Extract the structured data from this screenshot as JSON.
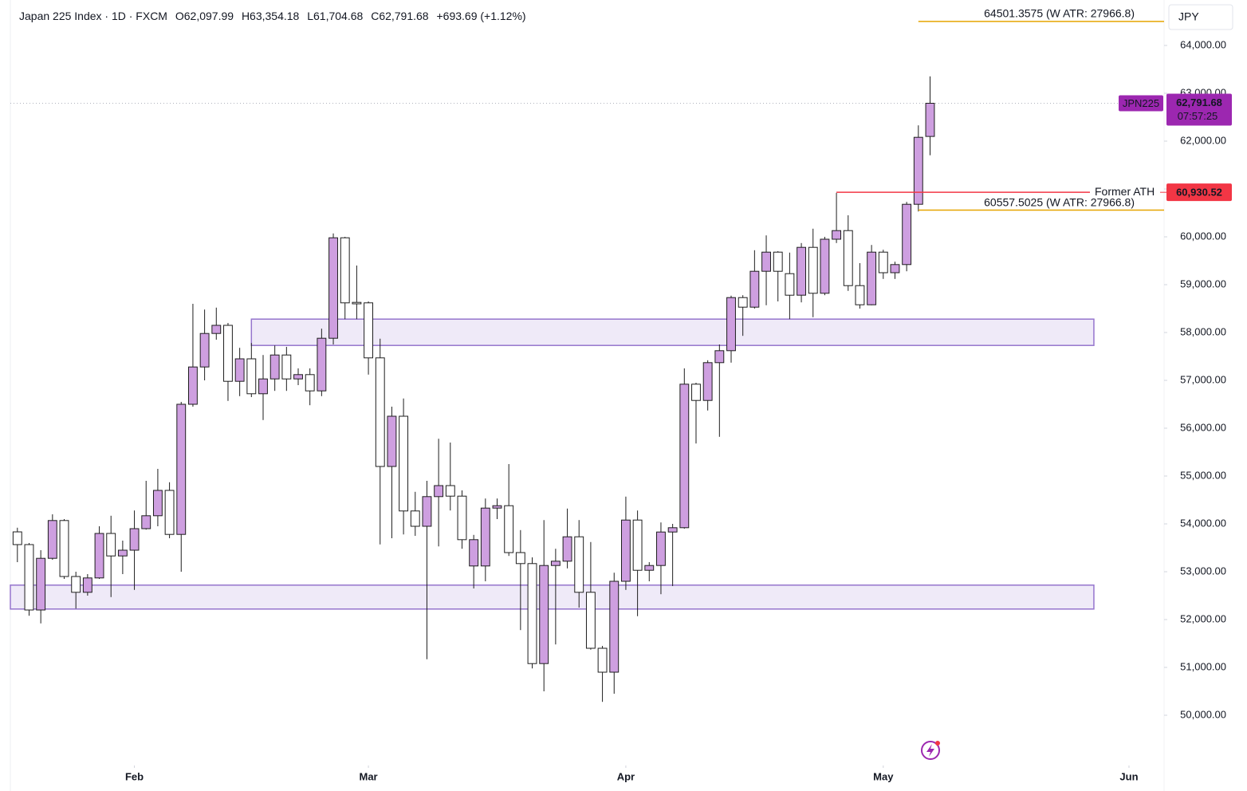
{
  "chart_data": {
    "type": "candlestick",
    "title": "Japan 225 Index · 1D · FXCM",
    "ohlc_text": [
      "O62,097.99",
      "H63,354.18",
      "L61,704.68",
      "C62,791.68",
      "+693.69 (+1.12%)"
    ],
    "currency": "JPY",
    "x": [
      0,
      1,
      2,
      3,
      4,
      5,
      6,
      7,
      8,
      9,
      10,
      11,
      12,
      13,
      14,
      15,
      16,
      17,
      18,
      19,
      20,
      21,
      22,
      23,
      24,
      25,
      26,
      27,
      28,
      29,
      30,
      31,
      32,
      33,
      34,
      35,
      36,
      37,
      38,
      39,
      40,
      41,
      42,
      43,
      44,
      45,
      46,
      47,
      48,
      49,
      50,
      51,
      52,
      53,
      54,
      55,
      56,
      57,
      58,
      59,
      60,
      61,
      62,
      63,
      64,
      65,
      66,
      67,
      68,
      69,
      70,
      71,
      72,
      73,
      74,
      75,
      76,
      77,
      78
    ],
    "open": [
      53833,
      53567,
      52200,
      53280,
      54070,
      52900,
      52570,
      52870,
      53800,
      53330,
      53450,
      53900,
      54170,
      54700,
      53780,
      56500,
      57280,
      57980,
      58150,
      56980,
      57450,
      56720,
      57030,
      57530,
      57030,
      57120,
      56780,
      57880,
      59980,
      58630,
      58620,
      57470,
      55200,
      56250,
      54270,
      53950,
      54570,
      54800,
      54580,
      53120,
      53120,
      54330,
      54380,
      53400,
      53170,
      51080,
      53130,
      53220,
      53730,
      52570,
      51400,
      50900,
      52800,
      54080,
      53030,
      53130,
      53830,
      53920,
      56920,
      56580,
      57370,
      57620,
      58730,
      58530,
      59280,
      59680,
      59230,
      58780,
      59780,
      58820,
      59950,
      60130,
      58980,
      58580,
      59680,
      59250,
      59420,
      60680,
      62097.99
    ],
    "high": [
      53920,
      53600,
      53450,
      54200,
      54100,
      53000,
      52950,
      53950,
      54170,
      53650,
      54280,
      54900,
      55150,
      54870,
      56550,
      58600,
      58480,
      58520,
      58200,
      57680,
      57780,
      57530,
      57730,
      57700,
      57250,
      57250,
      58080,
      60070,
      60000,
      59400,
      58650,
      57870,
      56450,
      56620,
      54670,
      54900,
      55780,
      55700,
      54700,
      53770,
      54530,
      54530,
      55250,
      53870,
      53300,
      54080,
      53480,
      54320,
      54080,
      53620,
      51450,
      52980,
      54570,
      54280,
      53200,
      54030,
      54000,
      57250,
      56950,
      57420,
      57750,
      58770,
      58780,
      59720,
      60030,
      59700,
      59670,
      59870,
      60170,
      60000,
      60920,
      60450,
      59450,
      59830,
      59730,
      59480,
      60730,
      62330,
      63354.18
    ],
    "low": [
      53200,
      52080,
      51920,
      53250,
      52850,
      52230,
      52500,
      52850,
      52470,
      52950,
      52620,
      53880,
      53950,
      53700,
      53000,
      56450,
      57000,
      57850,
      56570,
      56670,
      56650,
      56170,
      56780,
      56780,
      56900,
      56480,
      56670,
      57750,
      58280,
      58280,
      57120,
      53570,
      53700,
      53780,
      53750,
      51170,
      53530,
      54280,
      53480,
      52650,
      52800,
      54100,
      53330,
      51780,
      50980,
      50500,
      51480,
      53070,
      52250,
      51370,
      50280,
      50450,
      52620,
      52070,
      52800,
      52530,
      52700,
      53900,
      55680,
      56370,
      55820,
      57370,
      57930,
      58500,
      58570,
      58650,
      58280,
      58630,
      58320,
      58780,
      59870,
      58870,
      58500,
      58570,
      59120,
      59120,
      59280,
      60530,
      61704.68
    ],
    "close": [
      53567,
      52200,
      53280,
      54070,
      52900,
      52570,
      52870,
      53800,
      53330,
      53450,
      53900,
      54170,
      54700,
      53780,
      56500,
      57280,
      57980,
      58150,
      56980,
      57450,
      56720,
      57030,
      57530,
      57030,
      57120,
      56780,
      57880,
      59980,
      58620,
      58600,
      57470,
      55200,
      56250,
      54270,
      53950,
      54570,
      54800,
      54580,
      53670,
      53670,
      54330,
      54380,
      53400,
      53170,
      51080,
      53130,
      53220,
      53730,
      52570,
      51400,
      50900,
      52800,
      54080,
      53030,
      53130,
      53830,
      53920,
      56920,
      56580,
      57370,
      57620,
      58730,
      58530,
      59280,
      59680,
      59280,
      58780,
      59780,
      58820,
      59950,
      60130,
      58980,
      58580,
      59680,
      59250,
      59420,
      60680,
      62080,
      62791.68
    ],
    "up_color": "#ce9fe0",
    "down_color": "#ffffff",
    "border_color": "#1e1e1e",
    "xlim": [
      -0.6,
      98
    ],
    "xticks": [
      {
        "value": 10,
        "label": "Feb"
      },
      {
        "value": 30,
        "label": "Mar"
      },
      {
        "value": 52,
        "label": "Apr"
      },
      {
        "value": 74,
        "label": "May"
      },
      {
        "value": 95,
        "label": "Jun"
      }
    ],
    "ylim": [
      48950,
      64950
    ],
    "yticks": [
      {
        "value": 50000,
        "label": "50,000.00"
      },
      {
        "value": 51000,
        "label": "51,000.00"
      },
      {
        "value": 52000,
        "label": "52,000.00"
      },
      {
        "value": 53000,
        "label": "53,000.00"
      },
      {
        "value": 54000,
        "label": "54,000.00"
      },
      {
        "value": 55000,
        "label": "55,000.00"
      },
      {
        "value": 56000,
        "label": "56,000.00"
      },
      {
        "value": 57000,
        "label": "57,000.00"
      },
      {
        "value": 58000,
        "label": "58,000.00"
      },
      {
        "value": 59000,
        "label": "59,000.00"
      },
      {
        "value": 60000,
        "label": "60,000.00"
      },
      {
        "value": 61000,
        "label": "61,000.00"
      },
      {
        "value": 62000,
        "label": "62,000.00"
      },
      {
        "value": 63000,
        "label": "63,000.00"
      },
      {
        "value": 64000,
        "label": "64,000.00"
      }
    ],
    "grid": false,
    "zones": [
      {
        "x0": 20,
        "x1": 92,
        "y0": 57730,
        "y1": 58280
      },
      {
        "x0": -0.6,
        "x1": 92,
        "y0": 52220,
        "y1": 52720
      }
    ],
    "zone_color": "#9575cd",
    "levels": [
      {
        "value": 64501.3575,
        "label": "64501.3575 (W ATR: 27966.8)",
        "color": "#e6a500",
        "x0": 77
      },
      {
        "value": 60557.5025,
        "label": "60557.5025 (W ATR: 27966.8)",
        "color": "#e6a500",
        "x0": 77
      },
      {
        "value": 60930.52,
        "label": "Former ATH",
        "badge": "60,930.52",
        "color": "#f23645",
        "x0": 70
      }
    ],
    "last": {
      "symbol": "JPN225",
      "price_label": "62,791.68",
      "countdown": "07:57:25",
      "color": "#9c27b0"
    }
  }
}
